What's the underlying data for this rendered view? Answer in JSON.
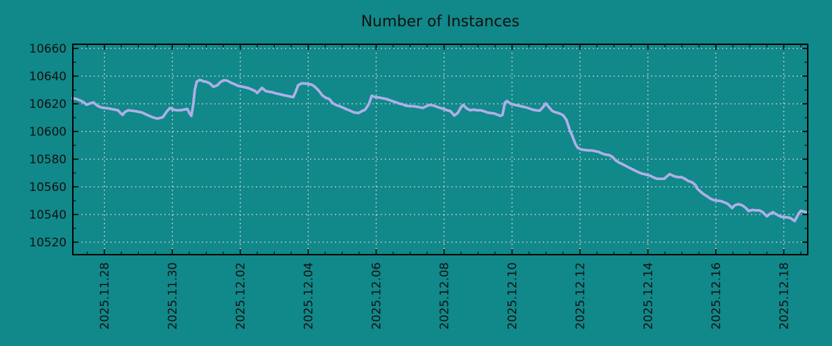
{
  "title": "Number of Instances",
  "colors": {
    "background": "#118889",
    "series_line": "#aeafe8",
    "grid": "#cfdada",
    "axis": "#000000",
    "text": "#111111"
  },
  "chart_data": {
    "type": "line",
    "title": "Number of Instances",
    "legend": false,
    "grid": true,
    "x_axis": {
      "unit": "days since 2025-11-27 00:00",
      "range": [
        0.071,
        21.704
      ],
      "minor_step": 0.5,
      "major_ticks": [
        {
          "t": 1,
          "label": "2025.11.28"
        },
        {
          "t": 3,
          "label": "2025.11.30"
        },
        {
          "t": 5,
          "label": "2025.12.02"
        },
        {
          "t": 7,
          "label": "2025.12.04"
        },
        {
          "t": 9,
          "label": "2025.12.06"
        },
        {
          "t": 11,
          "label": "2025.12.08"
        },
        {
          "t": 13,
          "label": "2025.12.10"
        },
        {
          "t": 15,
          "label": "2025.12.12"
        },
        {
          "t": 17,
          "label": "2025.12.14"
        },
        {
          "t": 19,
          "label": "2025.12.16"
        },
        {
          "t": 21,
          "label": "2025.12.18"
        }
      ]
    },
    "y_axis": {
      "range": [
        10511,
        10663
      ],
      "minor_step": 10,
      "major_ticks": [
        10520,
        10540,
        10560,
        10580,
        10600,
        10620,
        10640,
        10660
      ]
    },
    "series": [
      {
        "name": "instances",
        "color": "#aeafe8",
        "points": [
          [
            0.07,
            10624
          ],
          [
            0.17,
            10623.5
          ],
          [
            0.28,
            10622.5
          ],
          [
            0.38,
            10621.3
          ],
          [
            0.48,
            10619.3
          ],
          [
            0.58,
            10620.3
          ],
          [
            0.68,
            10621
          ],
          [
            0.79,
            10618.7
          ],
          [
            0.89,
            10617.5
          ],
          [
            0.99,
            10617
          ],
          [
            1.09,
            10616.8
          ],
          [
            1.19,
            10616.3
          ],
          [
            1.3,
            10615.8
          ],
          [
            1.4,
            10615.3
          ],
          [
            1.5,
            10612.8
          ],
          [
            1.54,
            10612
          ],
          [
            1.6,
            10614
          ],
          [
            1.7,
            10615.3
          ],
          [
            1.81,
            10615
          ],
          [
            1.91,
            10614.7
          ],
          [
            2.01,
            10614.2
          ],
          [
            2.11,
            10613.7
          ],
          [
            2.21,
            10612.5
          ],
          [
            2.32,
            10611.3
          ],
          [
            2.42,
            10610.3
          ],
          [
            2.56,
            10609.3
          ],
          [
            2.72,
            10610.3
          ],
          [
            2.83,
            10614.2
          ],
          [
            2.93,
            10617
          ],
          [
            3.03,
            10615.8
          ],
          [
            3.13,
            10615.3
          ],
          [
            3.24,
            10615.3
          ],
          [
            3.34,
            10615.8
          ],
          [
            3.44,
            10616.3
          ],
          [
            3.5,
            10613.5
          ],
          [
            3.56,
            10611.3
          ],
          [
            3.62,
            10620
          ],
          [
            3.66,
            10630
          ],
          [
            3.72,
            10636
          ],
          [
            3.81,
            10637.3
          ],
          [
            3.91,
            10636.3
          ],
          [
            4.01,
            10635.8
          ],
          [
            4.11,
            10634.7
          ],
          [
            4.21,
            10632.3
          ],
          [
            4.32,
            10633.3
          ],
          [
            4.42,
            10635.8
          ],
          [
            4.52,
            10637
          ],
          [
            4.62,
            10636.7
          ],
          [
            4.72,
            10635.3
          ],
          [
            4.83,
            10634.2
          ],
          [
            4.93,
            10633
          ],
          [
            5.03,
            10632.5
          ],
          [
            5.13,
            10632
          ],
          [
            5.24,
            10631.3
          ],
          [
            5.34,
            10630.3
          ],
          [
            5.44,
            10629.2
          ],
          [
            5.5,
            10627.8
          ],
          [
            5.64,
            10631.5
          ],
          [
            5.75,
            10629.2
          ],
          [
            5.85,
            10628.7
          ],
          [
            5.95,
            10628.3
          ],
          [
            6.05,
            10627.5
          ],
          [
            6.15,
            10627
          ],
          [
            6.26,
            10626.3
          ],
          [
            6.36,
            10625.8
          ],
          [
            6.46,
            10625.3
          ],
          [
            6.56,
            10624.8
          ],
          [
            6.64,
            10629.2
          ],
          [
            6.7,
            10633.3
          ],
          [
            6.81,
            10634.8
          ],
          [
            6.91,
            10634.7
          ],
          [
            7.01,
            10634.2
          ],
          [
            7.11,
            10633.8
          ],
          [
            7.21,
            10632
          ],
          [
            7.32,
            10629.2
          ],
          [
            7.42,
            10626
          ],
          [
            7.52,
            10624.3
          ],
          [
            7.62,
            10623.5
          ],
          [
            7.72,
            10620.5
          ],
          [
            7.83,
            10619
          ],
          [
            7.93,
            10618.2
          ],
          [
            8.03,
            10617.2
          ],
          [
            8.13,
            10616
          ],
          [
            8.24,
            10615
          ],
          [
            8.34,
            10613.8
          ],
          [
            8.48,
            10613.3
          ],
          [
            8.58,
            10614.7
          ],
          [
            8.68,
            10615.8
          ],
          [
            8.79,
            10620
          ],
          [
            8.87,
            10625.8
          ],
          [
            8.95,
            10625
          ],
          [
            9.05,
            10624.7
          ],
          [
            9.15,
            10624.2
          ],
          [
            9.26,
            10623.7
          ],
          [
            9.36,
            10623
          ],
          [
            9.46,
            10622
          ],
          [
            9.56,
            10621.3
          ],
          [
            9.66,
            10620.3
          ],
          [
            9.77,
            10619.7
          ],
          [
            9.87,
            10618.7
          ],
          [
            9.97,
            10618.3
          ],
          [
            10.07,
            10618.3
          ],
          [
            10.17,
            10618
          ],
          [
            10.28,
            10617.5
          ],
          [
            10.38,
            10617
          ],
          [
            10.48,
            10618.3
          ],
          [
            10.58,
            10619.2
          ],
          [
            10.68,
            10618.8
          ],
          [
            10.79,
            10617.8
          ],
          [
            10.89,
            10617
          ],
          [
            10.99,
            10616.3
          ],
          [
            11.09,
            10615.3
          ],
          [
            11.19,
            10614.7
          ],
          [
            11.3,
            10611.5
          ],
          [
            11.4,
            10613.3
          ],
          [
            11.5,
            10617.5
          ],
          [
            11.56,
            10619.2
          ],
          [
            11.66,
            10616.7
          ],
          [
            11.77,
            10615.3
          ],
          [
            11.87,
            10615.8
          ],
          [
            11.97,
            10615.3
          ],
          [
            12.07,
            10615.3
          ],
          [
            12.17,
            10614.7
          ],
          [
            12.28,
            10613.7
          ],
          [
            12.38,
            10613.3
          ],
          [
            12.48,
            10613
          ],
          [
            12.58,
            10612
          ],
          [
            12.66,
            10611.3
          ],
          [
            12.72,
            10612
          ],
          [
            12.79,
            10620.8
          ],
          [
            12.85,
            10622
          ],
          [
            12.93,
            10620.5
          ],
          [
            12.99,
            10619.7
          ],
          [
            13.09,
            10619.2
          ],
          [
            13.19,
            10618.7
          ],
          [
            13.3,
            10618
          ],
          [
            13.4,
            10617.5
          ],
          [
            13.5,
            10616.7
          ],
          [
            13.6,
            10615.8
          ],
          [
            13.7,
            10615.3
          ],
          [
            13.81,
            10615
          ],
          [
            13.91,
            10617.5
          ],
          [
            13.99,
            10620.3
          ],
          [
            14.09,
            10617.5
          ],
          [
            14.19,
            10614.7
          ],
          [
            14.3,
            10613.7
          ],
          [
            14.4,
            10613
          ],
          [
            14.5,
            10611.8
          ],
          [
            14.6,
            10608.5
          ],
          [
            14.7,
            10601
          ],
          [
            14.77,
            10597
          ],
          [
            14.87,
            10590.8
          ],
          [
            14.93,
            10588.3
          ],
          [
            15.03,
            10587
          ],
          [
            15.13,
            10586.7
          ],
          [
            15.24,
            10586.3
          ],
          [
            15.34,
            10586.3
          ],
          [
            15.44,
            10585.8
          ],
          [
            15.54,
            10585.3
          ],
          [
            15.64,
            10584.2
          ],
          [
            15.75,
            10583.3
          ],
          [
            15.85,
            10583
          ],
          [
            15.95,
            10581.7
          ],
          [
            16.05,
            10579.2
          ],
          [
            16.15,
            10577.5
          ],
          [
            16.26,
            10576.3
          ],
          [
            16.36,
            10575
          ],
          [
            16.46,
            10573.7
          ],
          [
            16.56,
            10572.5
          ],
          [
            16.66,
            10571.3
          ],
          [
            16.77,
            10570
          ],
          [
            16.87,
            10569.3
          ],
          [
            16.97,
            10568.7
          ],
          [
            17.07,
            10568
          ],
          [
            17.17,
            10566.7
          ],
          [
            17.28,
            10565.8
          ],
          [
            17.38,
            10565.8
          ],
          [
            17.48,
            10565.8
          ],
          [
            17.58,
            10568
          ],
          [
            17.64,
            10569.2
          ],
          [
            17.68,
            10568.7
          ],
          [
            17.79,
            10567.5
          ],
          [
            17.89,
            10567
          ],
          [
            17.99,
            10567
          ],
          [
            18.09,
            10565.8
          ],
          [
            18.19,
            10564.2
          ],
          [
            18.3,
            10563.3
          ],
          [
            18.4,
            10561.3
          ],
          [
            18.44,
            10559
          ],
          [
            18.54,
            10556.7
          ],
          [
            18.64,
            10554.7
          ],
          [
            18.75,
            10553
          ],
          [
            18.85,
            10551.3
          ],
          [
            18.95,
            10550.3
          ],
          [
            19.05,
            10550
          ],
          [
            19.15,
            10549.7
          ],
          [
            19.26,
            10548.7
          ],
          [
            19.36,
            10547.5
          ],
          [
            19.48,
            10544.7
          ],
          [
            19.56,
            10546.7
          ],
          [
            19.66,
            10547.5
          ],
          [
            19.77,
            10546.7
          ],
          [
            19.87,
            10545
          ],
          [
            19.97,
            10542.5
          ],
          [
            20.07,
            10543.3
          ],
          [
            20.17,
            10543
          ],
          [
            20.28,
            10543
          ],
          [
            20.38,
            10541.7
          ],
          [
            20.5,
            10538.7
          ],
          [
            20.58,
            10540.3
          ],
          [
            20.68,
            10541.7
          ],
          [
            20.79,
            10540
          ],
          [
            20.89,
            10538.7
          ],
          [
            20.99,
            10538
          ],
          [
            21.09,
            10538
          ],
          [
            21.19,
            10537.5
          ],
          [
            21.32,
            10535.3
          ],
          [
            21.44,
            10540.8
          ],
          [
            21.5,
            10542.7
          ],
          [
            21.6,
            10542
          ],
          [
            21.7,
            10541.7
          ]
        ]
      }
    ]
  }
}
